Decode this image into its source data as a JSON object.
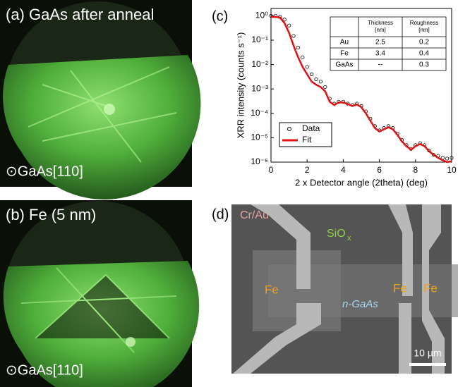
{
  "panel_a": {
    "label": "(a) GaAs after anneal",
    "caption": "⊙GaAs[110]"
  },
  "panel_b": {
    "label": "(b) Fe (5 nm)",
    "caption": "⊙GaAs[110]"
  },
  "panel_c": {
    "label": "(c)"
  },
  "panel_d": {
    "label": "(d)",
    "cr_au": "Cr/Au",
    "sio": "SiO",
    "sio_sub": "x",
    "fe": [
      "Fe",
      "Fe",
      "Fe"
    ],
    "ngaas": "n-GaAs",
    "scale_bar": "10 µm"
  },
  "chart_data": {
    "type": "line",
    "log_y": true,
    "xlabel": "2 x Detector angle (2theta) (deg)",
    "ylabel": "XRR intensity (counts s⁻¹)",
    "xlim": [
      0,
      10
    ],
    "xticks": [
      0,
      2,
      4,
      6,
      8,
      10
    ],
    "ylim": [
      1e-06,
      2
    ],
    "yticks": [
      {
        "value": 1e-06,
        "label": "10⁻⁶"
      },
      {
        "value": 1e-05,
        "label": "10⁻⁵"
      },
      {
        "value": 0.0001,
        "label": "10⁻⁴"
      },
      {
        "value": 0.001,
        "label": "10⁻³"
      },
      {
        "value": 0.01,
        "label": "10⁻²"
      },
      {
        "value": 0.1,
        "label": "10⁻¹"
      },
      {
        "value": 1,
        "label": "10⁰"
      }
    ],
    "legend": "lower left",
    "x": [
      0,
      0.25,
      0.5,
      0.75,
      1,
      1.25,
      1.5,
      1.75,
      2,
      2.25,
      2.5,
      2.75,
      3,
      3.25,
      3.5,
      3.75,
      4,
      4.25,
      4.5,
      4.75,
      5,
      5.25,
      5.5,
      5.75,
      6,
      6.25,
      6.5,
      6.75,
      7,
      7.25,
      7.5,
      7.75,
      8,
      8.25,
      8.5,
      8.75,
      9,
      9.25,
      9.5,
      9.75,
      10
    ],
    "series": [
      {
        "name": "Data",
        "color": "#000000",
        "marker": "circle",
        "values": [
          1,
          1,
          0.9,
          0.7,
          0.4,
          0.15,
          0.05,
          0.02,
          0.008,
          0.004,
          0.0025,
          0.002,
          0.0012,
          0.0004,
          0.00025,
          0.0003,
          0.0003,
          0.00025,
          0.00022,
          0.00025,
          0.0002,
          0.00012,
          6e-05,
          3e-05,
          2e-05,
          2.5e-05,
          3e-05,
          2.5e-05,
          1.5e-05,
          8e-06,
          5e-06,
          3.5e-06,
          5e-06,
          6e-06,
          5e-06,
          3e-06,
          2e-06,
          1.8e-06,
          1.5e-06,
          1.4e-06,
          1.5e-06
        ]
      },
      {
        "name": "Fit",
        "color": "#e01010",
        "marker": "line",
        "values": [
          0.9,
          0.9,
          0.85,
          0.5,
          0.2,
          0.06,
          0.02,
          0.008,
          0.004,
          0.002,
          0.0015,
          0.0012,
          0.0008,
          0.0003,
          0.00022,
          0.00028,
          0.00028,
          0.00024,
          0.0002,
          0.00023,
          0.00018,
          0.0001,
          5e-05,
          2.5e-05,
          1.8e-05,
          2.2e-05,
          2.7e-05,
          2.2e-05,
          1.3e-05,
          7e-06,
          4.5e-06,
          3.2e-06,
          4.5e-06,
          5.5e-06,
          4.5e-06,
          2.8e-06,
          2e-06,
          1.5e-06,
          1.2e-06,
          1e-06,
          1.1e-06
        ]
      }
    ],
    "table": {
      "columns": [
        "Thickness [nm]",
        "Roughness [nm]"
      ],
      "rows": [
        {
          "label": "Au",
          "cells": [
            2.5,
            0.2
          ]
        },
        {
          "label": "Fe",
          "cells": [
            3.4,
            0.4
          ]
        },
        {
          "label": "GaAs",
          "cells": [
            "--",
            0.3
          ]
        }
      ]
    }
  }
}
